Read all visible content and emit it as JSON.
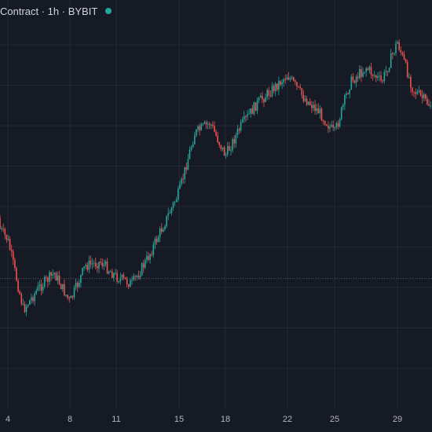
{
  "header": {
    "title": "Contract · 1h · BYBIT",
    "status_icon": "live-status-dot-icon",
    "status_color": "#26a69a"
  },
  "colors": {
    "background": "#161a25",
    "grid": "#242833",
    "up": "#26a69a",
    "down": "#ef5350",
    "axis_text": "#b2b5be",
    "reference_line": "#5d606b"
  },
  "x_axis": {
    "labels": [
      "4",
      "8",
      "11",
      "15",
      "18",
      "22",
      "25",
      "29"
    ]
  },
  "chart_data": {
    "type": "candlestick",
    "timeframe": "1h",
    "x": [
      "4",
      "8",
      "11",
      "15",
      "18",
      "22",
      "25",
      "29"
    ],
    "y_range": [
      0,
      100
    ],
    "price_path": [
      {
        "x": "3",
        "y": 47
      },
      {
        "x": "4",
        "y": 41
      },
      {
        "x": "5",
        "y": 22
      },
      {
        "x": "6",
        "y": 28
      },
      {
        "x": "7",
        "y": 32
      },
      {
        "x": "8",
        "y": 24
      },
      {
        "x": "9",
        "y": 34
      },
      {
        "x": "10",
        "y": 35
      },
      {
        "x": "11",
        "y": 31
      },
      {
        "x": "12",
        "y": 29
      },
      {
        "x": "13",
        "y": 36
      },
      {
        "x": "14",
        "y": 45
      },
      {
        "x": "15",
        "y": 54
      },
      {
        "x": "16",
        "y": 70
      },
      {
        "x": "17",
        "y": 73
      },
      {
        "x": "18",
        "y": 64
      },
      {
        "x": "19",
        "y": 72
      },
      {
        "x": "20",
        "y": 78
      },
      {
        "x": "21",
        "y": 82
      },
      {
        "x": "22",
        "y": 86
      },
      {
        "x": "23",
        "y": 80
      },
      {
        "x": "24",
        "y": 76
      },
      {
        "x": "25",
        "y": 70
      },
      {
        "x": "26",
        "y": 84
      },
      {
        "x": "27",
        "y": 88
      },
      {
        "x": "28",
        "y": 84
      },
      {
        "x": "29",
        "y": 95
      },
      {
        "x": "30",
        "y": 82
      },
      {
        "x": "31",
        "y": 78
      }
    ],
    "reference_line": {
      "y": 30.5,
      "style": "dotted"
    },
    "grid": true
  }
}
